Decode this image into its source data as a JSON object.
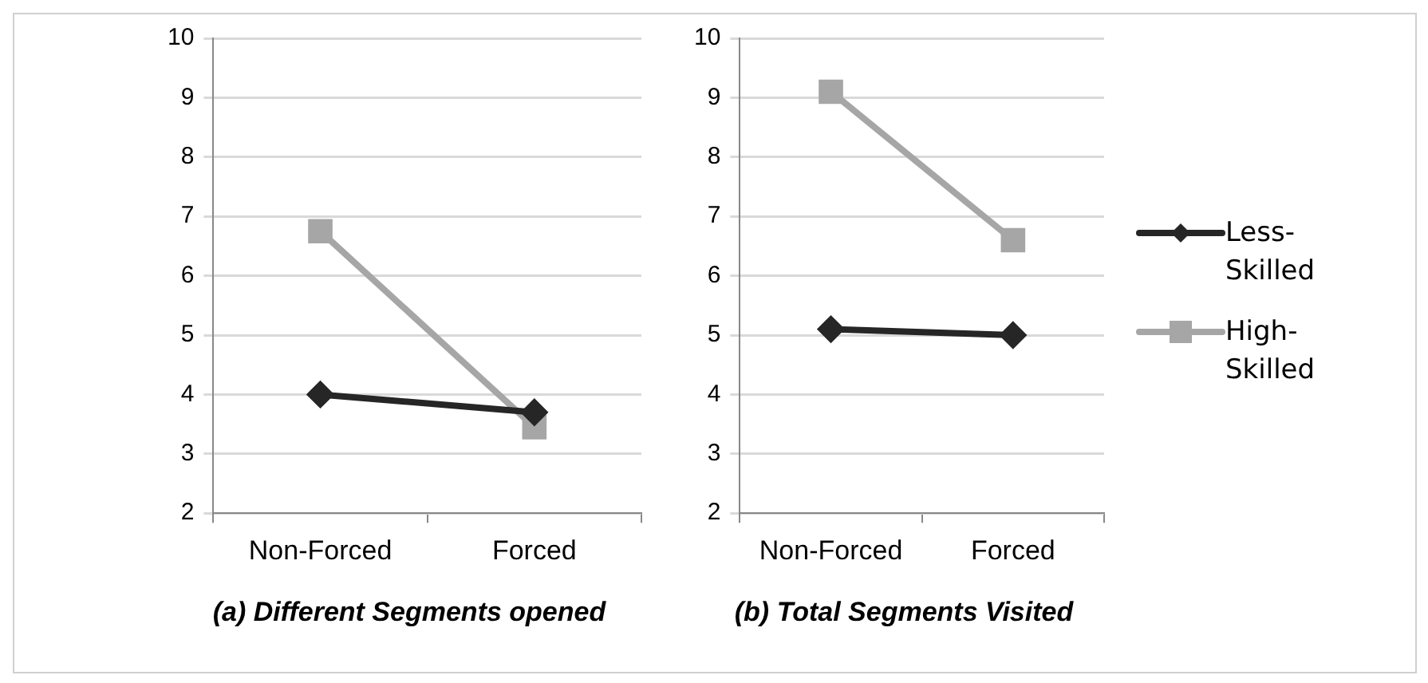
{
  "chart_data": [
    {
      "type": "line",
      "title": "(a) Different Segments opened",
      "categories": [
        "Non-Forced",
        "Forced"
      ],
      "ylim": [
        2,
        10
      ],
      "yticks": [
        2,
        3,
        4,
        5,
        6,
        7,
        8,
        9,
        10
      ],
      "grid": "y",
      "legend": false,
      "series": [
        {
          "color": "#262626",
          "values": [
            4.0,
            3.7
          ],
          "marker": "diamond"
        },
        {
          "color": "#a6a6a6",
          "values": [
            6.75,
            3.45
          ],
          "marker": "square"
        }
      ]
    },
    {
      "type": "line",
      "title": "(b) Total Segments Visited",
      "categories": [
        "Non-Forced",
        "Forced"
      ],
      "ylim": [
        2,
        10
      ],
      "yticks": [
        2,
        3,
        4,
        5,
        6,
        7,
        8,
        9,
        10
      ],
      "grid": "y",
      "legend": "right",
      "series": [
        {
          "name": "Less-Skilled",
          "color": "#262626",
          "values": [
            5.1,
            5.0
          ],
          "marker": "diamond"
        },
        {
          "name": "High-Skilled",
          "color": "#a6a6a6",
          "values": [
            9.1,
            6.6
          ],
          "marker": "square"
        }
      ]
    }
  ]
}
